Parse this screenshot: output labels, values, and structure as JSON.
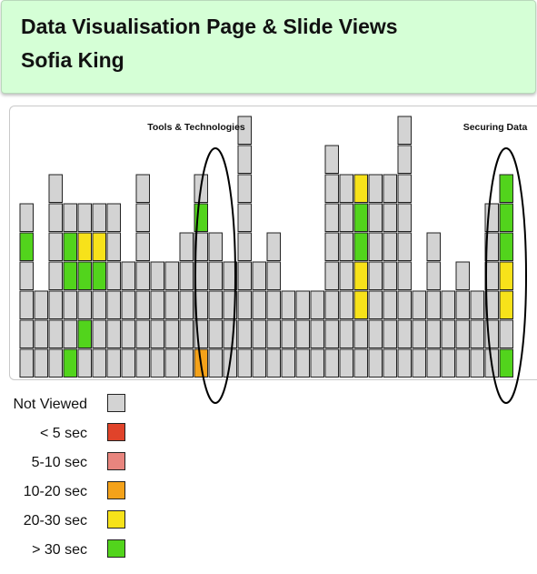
{
  "header": {
    "title": "Data Visualisation Page & Slide Views",
    "subtitle": "Sofia King"
  },
  "annotations": {
    "section_left": "Tools & Technologies",
    "section_right": "Securing Data"
  },
  "legend": [
    {
      "label": "Not Viewed",
      "color": "#d3d3d3",
      "key": "n"
    },
    {
      "label": "< 5 sec",
      "color": "#e0432a",
      "key": "r"
    },
    {
      "label": "5-10 sec",
      "color": "#e8857e",
      "key": "p"
    },
    {
      "label": "10-20 sec",
      "color": "#f4a21a",
      "key": "o"
    },
    {
      "label": "20-30 sec",
      "color": "#f7e21a",
      "key": "y"
    },
    {
      "label": "> 30 sec",
      "color": "#52d41c",
      "key": "g"
    }
  ],
  "chart_data": {
    "type": "heatmap",
    "description_note": "Each column is a page; cells stacked from bottom represent slides; codes refer to legend keys (n=Not Viewed, o=10-20 sec, y=20-30 sec, g=> 30 sec).",
    "columns": [
      [
        "n",
        "n",
        "n",
        "n",
        "g",
        "n"
      ],
      [
        "n",
        "n",
        "n"
      ],
      [
        "n",
        "n",
        "n",
        "n",
        "n",
        "n",
        "n"
      ],
      [
        "g",
        "n",
        "n",
        "g",
        "g",
        "n"
      ],
      [
        "n",
        "g",
        "n",
        "g",
        "y",
        "n"
      ],
      [
        "n",
        "n",
        "n",
        "g",
        "y",
        "n"
      ],
      [
        "n",
        "n",
        "n",
        "n",
        "n",
        "n"
      ],
      [
        "n",
        "n",
        "n",
        "n"
      ],
      [
        "n",
        "n",
        "n",
        "n",
        "n",
        "n",
        "n"
      ],
      [
        "n",
        "n",
        "n",
        "n"
      ],
      [
        "n",
        "n",
        "n",
        "n"
      ],
      [
        "n",
        "n",
        "n",
        "n",
        "n"
      ],
      [
        "o",
        "n",
        "n",
        "n",
        "n",
        "g",
        "n"
      ],
      [
        "n",
        "n",
        "n",
        "n",
        "n"
      ],
      [
        "n",
        "n",
        "n",
        "n"
      ],
      [
        "n",
        "n",
        "n",
        "n",
        "n",
        "n",
        "n",
        "n",
        "n"
      ],
      [
        "n",
        "n",
        "n",
        "n"
      ],
      [
        "n",
        "n",
        "n",
        "n",
        "n"
      ],
      [
        "n",
        "n",
        "n"
      ],
      [
        "n",
        "n",
        "n"
      ],
      [
        "n",
        "n",
        "n"
      ],
      [
        "n",
        "n",
        "n",
        "n",
        "n",
        "n",
        "n",
        "n"
      ],
      [
        "n",
        "n",
        "n",
        "n",
        "n",
        "n",
        "n"
      ],
      [
        "n",
        "n",
        "y",
        "y",
        "g",
        "g",
        "y"
      ],
      [
        "n",
        "n",
        "n",
        "n",
        "n",
        "n",
        "n"
      ],
      [
        "n",
        "n",
        "n",
        "n",
        "n",
        "n",
        "n"
      ],
      [
        "n",
        "n",
        "n",
        "n",
        "n",
        "n",
        "n",
        "n",
        "n"
      ],
      [
        "n",
        "n",
        "n"
      ],
      [
        "n",
        "n",
        "n",
        "n",
        "n"
      ],
      [
        "n",
        "n",
        "n"
      ],
      [
        "n",
        "n",
        "n",
        "n"
      ],
      [
        "n",
        "n",
        "n"
      ],
      [
        "n",
        "n",
        "n",
        "n",
        "n",
        "n"
      ],
      [
        "g",
        "n",
        "y",
        "y",
        "g",
        "g",
        "g"
      ]
    ]
  }
}
